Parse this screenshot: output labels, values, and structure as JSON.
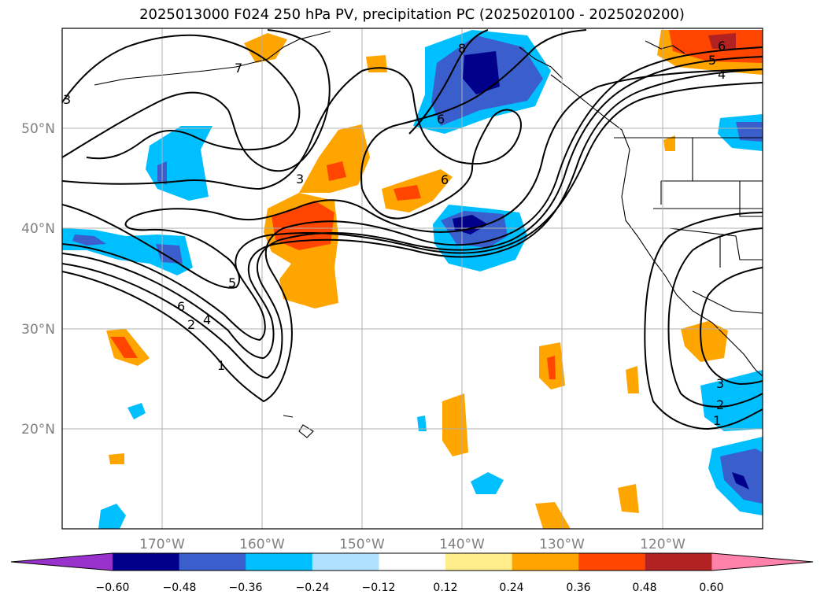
{
  "title": "2025013000 F024 250 hPa PV, precipitation PC (2025020100 - 2025020200)",
  "map": {
    "lon_range": [
      -180,
      -110
    ],
    "lat_range": [
      10,
      60
    ],
    "lat_ticks": [
      "50°N",
      "40°N",
      "30°N",
      "20°N"
    ],
    "lon_ticks": [
      "170°W",
      "160°W",
      "150°W",
      "140°W",
      "130°W",
      "120°W"
    ],
    "grid": true,
    "pv_contour_levels": [
      1,
      2,
      3,
      4,
      5,
      6,
      7,
      8
    ],
    "contour_labels": [
      "3",
      "7",
      "8",
      "6",
      "6",
      "5",
      "4",
      "6",
      "3",
      "6",
      "5",
      "4",
      "3",
      "2",
      "1",
      "3",
      "2",
      "1"
    ],
    "colors": {
      "contour": "#000000",
      "grid": "#b0b0b0",
      "coast": "#000000"
    }
  },
  "colorbar": {
    "ticks": [
      "−0.60",
      "−0.48",
      "−0.36",
      "−0.24",
      "−0.12",
      "0.12",
      "0.24",
      "0.36",
      "0.48",
      "0.60"
    ],
    "colors": [
      "#9932cc",
      "#00008b",
      "#3a5fcd",
      "#00bfff",
      "#b0e2ff",
      "#ffffff",
      "#ffec8b",
      "#ffa500",
      "#ff4500",
      "#b22222",
      "#ff82ab"
    ]
  }
}
